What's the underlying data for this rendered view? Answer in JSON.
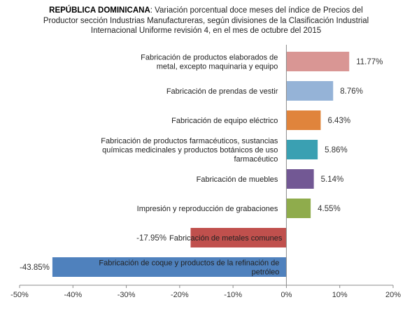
{
  "title": {
    "bold": "REPÚBLICA DOMINICANA",
    "line1": ": Variación porcentual doce meses del índice de Precios del",
    "line2": "Productor sección Industrias Manufactureras, según divisiones de la Clasificación Industrial",
    "line3": "Internacional Uniforme revisión 4, en el mes de octubre del 2015"
  },
  "chart_data": {
    "type": "bar",
    "orientation": "horizontal",
    "xlim": [
      -50,
      20
    ],
    "xticks": [
      -50,
      -40,
      -30,
      -20,
      -10,
      0,
      10,
      20
    ],
    "xtick_labels": [
      "-50%",
      "-40%",
      "-30%",
      "-20%",
      "-10%",
      "0%",
      "10%",
      "20%"
    ],
    "grid": false,
    "categories": [
      [
        "Fabricación de productos elaborados de",
        "metal, excepto maquinaria y equipo"
      ],
      [
        "Fabricación de prendas de vestir"
      ],
      [
        "Fabricación de equipo eléctrico"
      ],
      [
        "Fabricación de productos farmacéuticos, sustancias",
        "químicas medicinales y productos botánicos de uso",
        "farmacéutico"
      ],
      [
        "Fabricación de muebles"
      ],
      [
        "Impresión y reproducción de grabaciones"
      ],
      [
        "Fabricación de metales comunes"
      ],
      [
        "Fabricación de coque y productos de la refinación de",
        "petróleo"
      ]
    ],
    "values": [
      11.77,
      8.76,
      6.43,
      5.86,
      5.14,
      4.55,
      -17.95,
      -43.85
    ],
    "value_labels": [
      "11.77%",
      "8.76%",
      "6.43%",
      "5.86%",
      "5.14%",
      "4.55%",
      "-17.95%",
      "-43.85%"
    ],
    "colors": [
      "#d99694",
      "#95b3d7",
      "#e0843c",
      "#3aa0b2",
      "#725894",
      "#8fac4c",
      "#c0504d",
      "#4f81bd"
    ]
  }
}
